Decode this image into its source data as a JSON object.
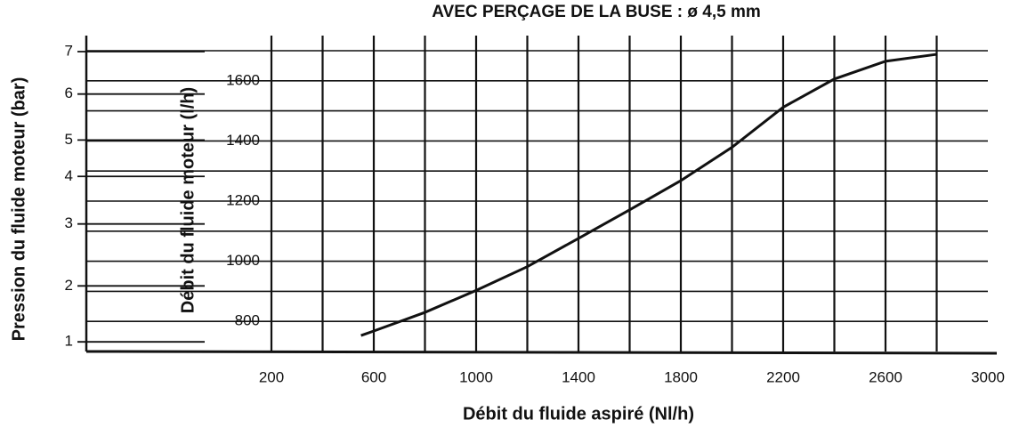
{
  "chart_data": {
    "type": "line",
    "title": "AVEC PERÇAGE DE LA BUSE : ø 4,5 mm",
    "x_label": "Débit du fluide aspiré (Nl/h)",
    "y_label": "Débit du fluide moteur (l/h)",
    "y2_label": "Pression du fluide moteur (bar)",
    "x": [
      550,
      600,
      800,
      1000,
      1200,
      1400,
      1600,
      1800,
      2000,
      2200,
      2400,
      2600,
      2800
    ],
    "series": [
      {
        "name": "ø 4,5 mm",
        "color": "#111111",
        "values": [
          753,
          768,
          830,
          903,
          982,
          1076,
          1171,
          1268,
          1379,
          1512,
          1606,
          1665,
          1688
        ]
      }
    ],
    "xlim": [
      200,
      3000
    ],
    "xticks": [
      200,
      600,
      1000,
      1400,
      1800,
      2200,
      2600,
      3000
    ],
    "xgrid": [
      200,
      400,
      600,
      800,
      1000,
      1200,
      1400,
      1600,
      1800,
      2000,
      2200,
      2400,
      2600,
      2800
    ],
    "ylim": [
      700,
      1700
    ],
    "yticks": [
      800,
      1000,
      1200,
      1400,
      1600
    ],
    "ygrid": [
      800,
      900,
      1000,
      1100,
      1200,
      1300,
      1400,
      1500,
      1600,
      1700
    ],
    "y2ticks": [
      1,
      2,
      3,
      4,
      5,
      6,
      7
    ],
    "y2_equivalent_flow": [
      732,
      918,
      1124,
      1282,
      1403,
      1556,
      1697
    ],
    "grid": true
  }
}
